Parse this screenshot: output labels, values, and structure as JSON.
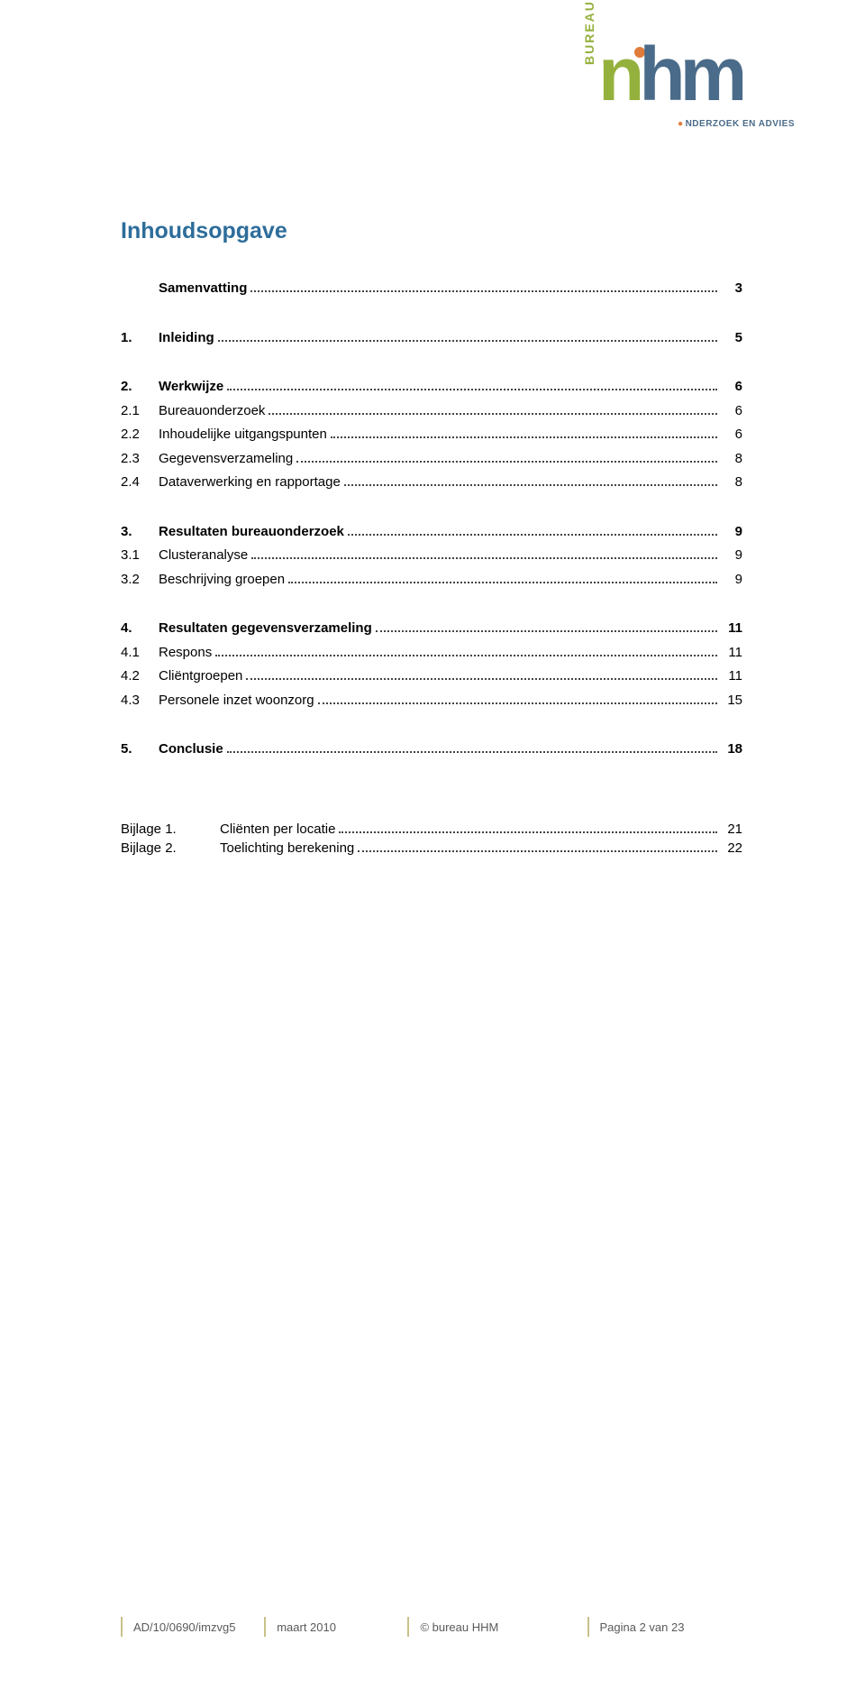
{
  "colors": {
    "heading": "#2d6d9a",
    "logo_green": "#95b13d",
    "logo_blue": "#4a6b89",
    "logo_orange": "#e07b3a",
    "footer_border": "#c8c18a",
    "footer_text": "#5a5a5a",
    "text": "#000000",
    "background": "#ffffff"
  },
  "logo": {
    "bureau_vertical": "BUREAU",
    "letters": {
      "n": "n",
      "h": "h",
      "m": "m"
    },
    "subtitle_dot": "●",
    "subtitle": "NDERZOEK EN ADVIES"
  },
  "heading": "Inhoudsopgave",
  "toc": [
    {
      "num": "",
      "label": "Samenvatting",
      "page": "3",
      "bold": true
    },
    {
      "spacer": true
    },
    {
      "num": "1.",
      "label": "Inleiding",
      "page": "5",
      "bold": true
    },
    {
      "spacer": true
    },
    {
      "num": "2.",
      "label": "Werkwijze",
      "page": "6",
      "bold": true
    },
    {
      "num": "2.1",
      "label": "Bureauonderzoek",
      "page": "6",
      "bold": false
    },
    {
      "num": "2.2",
      "label": "Inhoudelijke uitgangspunten",
      "page": "6",
      "bold": false
    },
    {
      "num": "2.3",
      "label": "Gegevensverzameling",
      "page": "8",
      "bold": false
    },
    {
      "num": "2.4",
      "label": "Dataverwerking en rapportage",
      "page": "8",
      "bold": false
    },
    {
      "spacer": true
    },
    {
      "num": "3.",
      "label": "Resultaten bureauonderzoek",
      "page": "9",
      "bold": true
    },
    {
      "num": "3.1",
      "label": "Clusteranalyse",
      "page": "9",
      "bold": false
    },
    {
      "num": "3.2",
      "label": "Beschrijving groepen",
      "page": "9",
      "bold": false
    },
    {
      "spacer": true
    },
    {
      "num": "4.",
      "label": "Resultaten gegevensverzameling",
      "page": "11",
      "bold": true
    },
    {
      "num": "4.1",
      "label": "Respons",
      "page": "11",
      "bold": false
    },
    {
      "num": "4.2",
      "label": "Cliëntgroepen",
      "page": "11",
      "bold": false
    },
    {
      "num": "4.3",
      "label": "Personele inzet woonzorg",
      "page": "15",
      "bold": false
    },
    {
      "spacer": true
    },
    {
      "num": "5.",
      "label": "Conclusie",
      "page": "18",
      "bold": true
    }
  ],
  "appendices": [
    {
      "num": "Bijlage 1.",
      "label": "Cliënten per locatie",
      "page": "21"
    },
    {
      "num": "Bijlage 2.",
      "label": "Toelichting berekening",
      "page": "22"
    }
  ],
  "footer": {
    "doc_id": "AD/10/0690/imzvg5",
    "date": "maart 2010",
    "copyright": "© bureau HHM",
    "page_info": "Pagina 2 van 23"
  }
}
